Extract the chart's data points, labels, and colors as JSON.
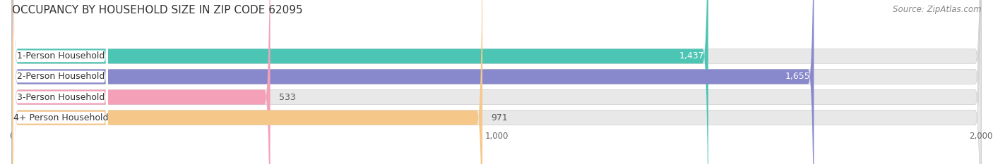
{
  "title": "OCCUPANCY BY HOUSEHOLD SIZE IN ZIP CODE 62095",
  "source": "Source: ZipAtlas.com",
  "categories": [
    "1-Person Household",
    "2-Person Household",
    "3-Person Household",
    "4+ Person Household"
  ],
  "values": [
    1437,
    1655,
    533,
    971
  ],
  "bar_colors": [
    "#4dc5b5",
    "#8888cc",
    "#f4a0b8",
    "#f5c88a"
  ],
  "xlim": [
    0,
    2000
  ],
  "xticks": [
    0,
    1000,
    2000
  ],
  "background_color": "#ffffff",
  "bar_bg_color": "#e8e8e8",
  "title_fontsize": 11,
  "source_fontsize": 8.5,
  "label_fontsize": 9,
  "value_fontsize": 9
}
